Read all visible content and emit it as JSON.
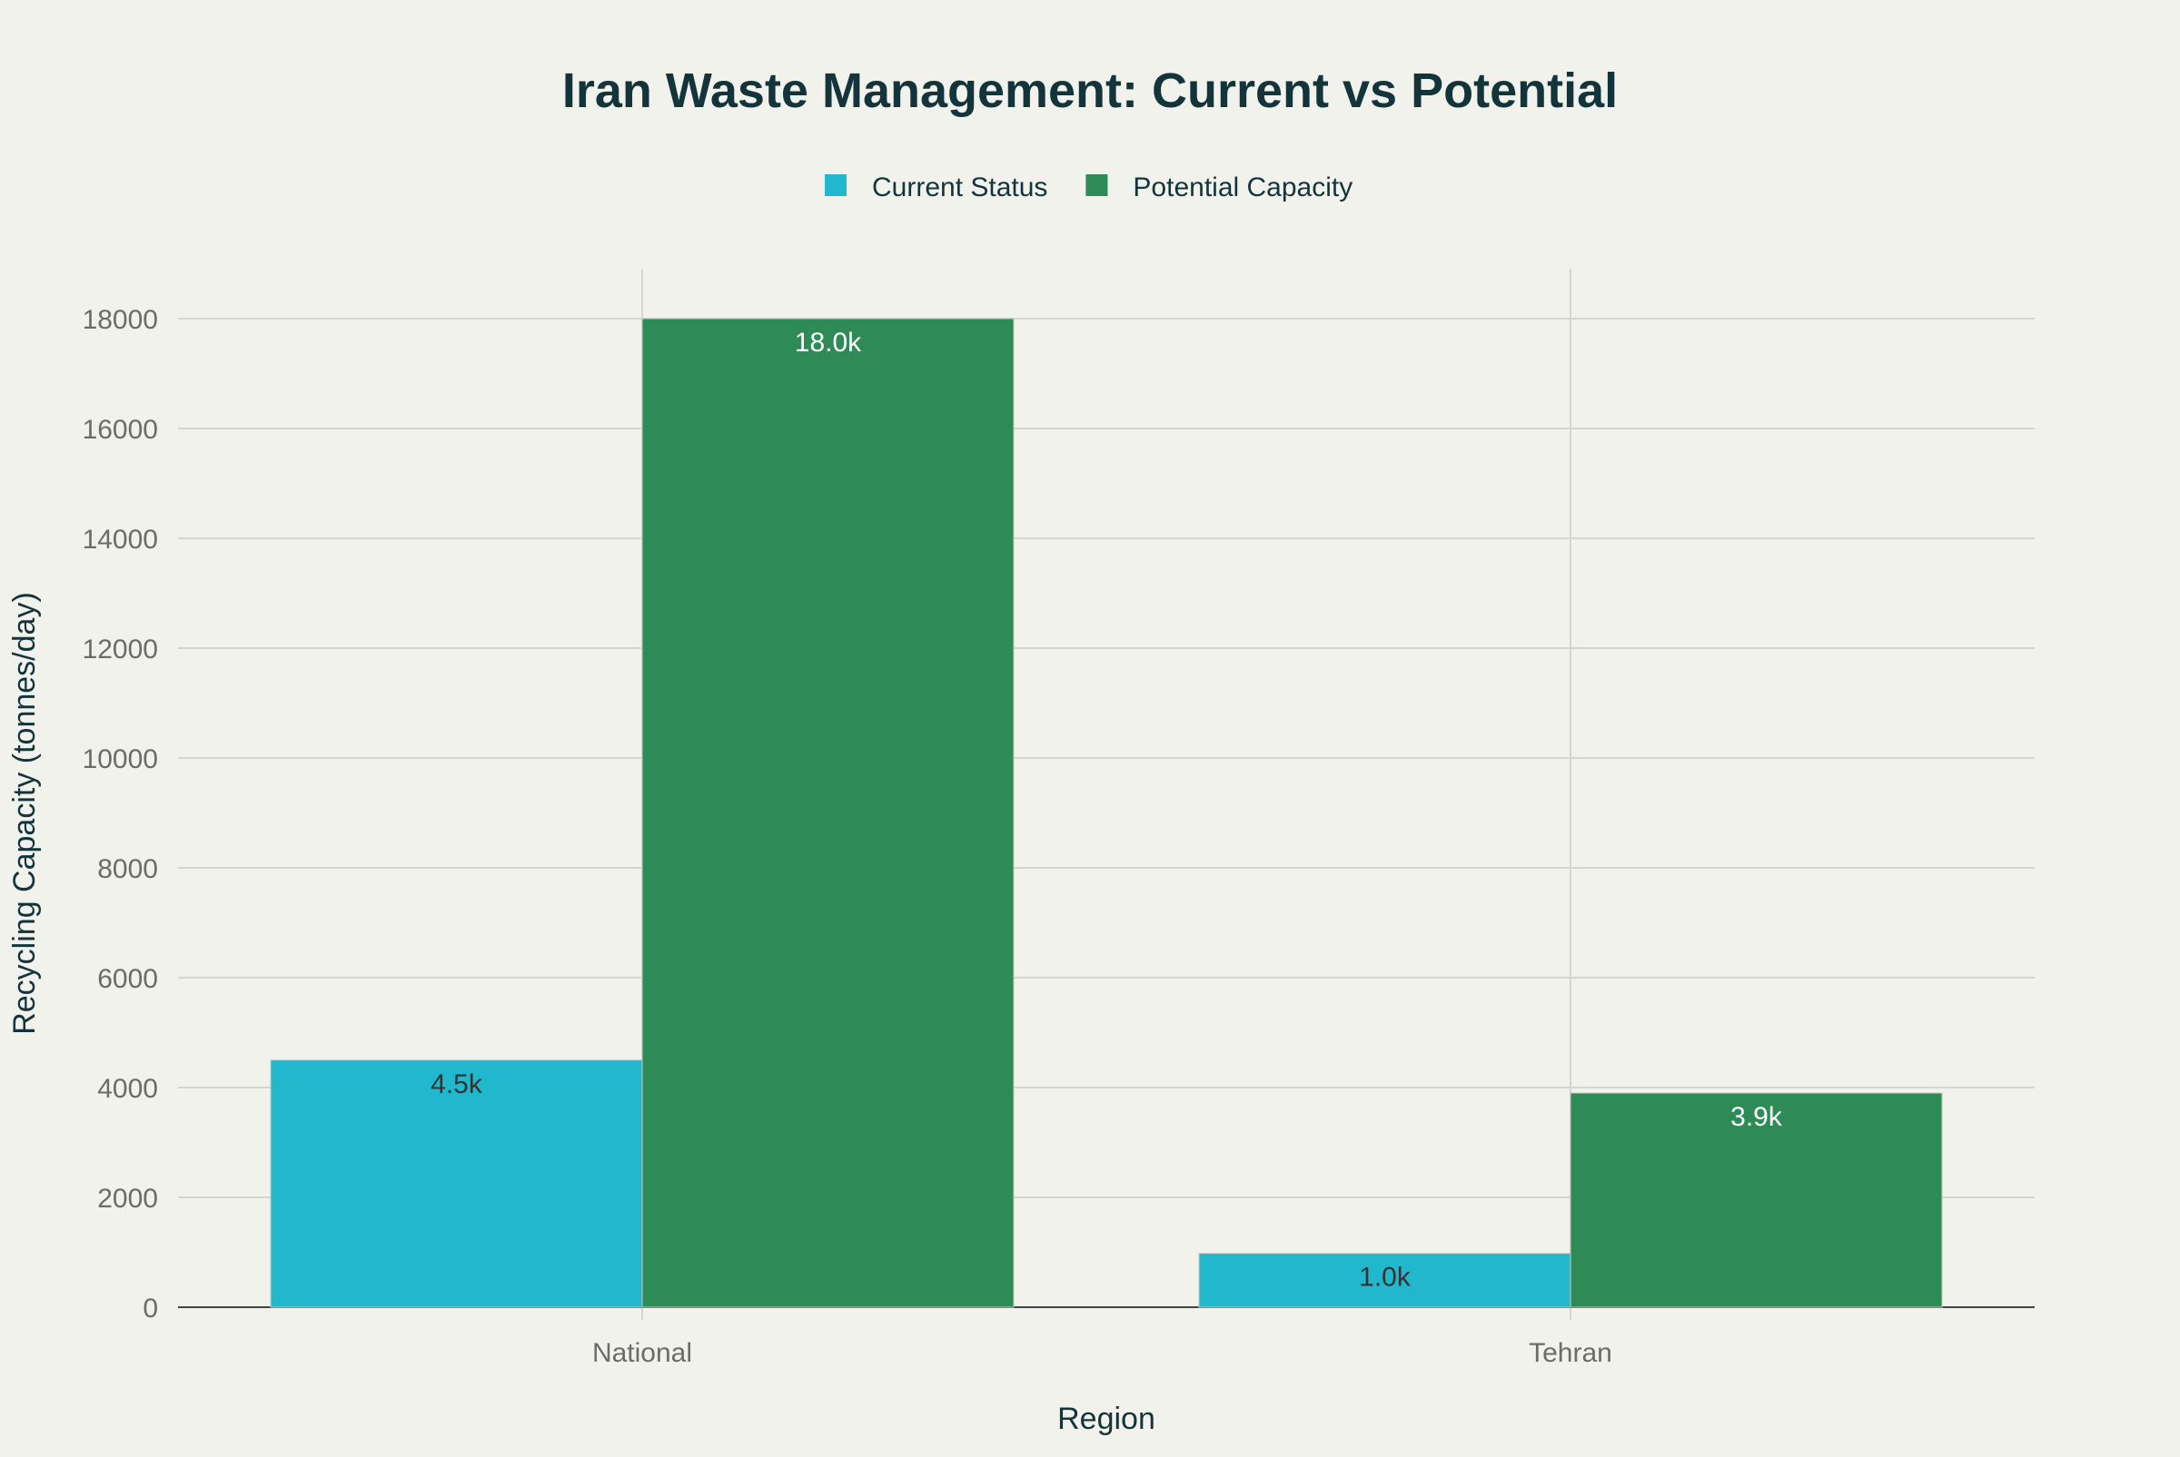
{
  "chart_data": {
    "type": "bar",
    "title": "Iran Waste Management: Current vs Potential",
    "xlabel": "Region",
    "ylabel": "Recycling Capacity (tonnes/day)",
    "categories": [
      "National",
      "Tehran"
    ],
    "series": [
      {
        "name": "Current Status",
        "values": [
          4500,
          980
        ],
        "labels": [
          "4.5k",
          "1.0k"
        ],
        "color": "#21b7cd",
        "label_color": "#333333"
      },
      {
        "name": "Potential Capacity",
        "values": [
          18000,
          3900
        ],
        "labels": [
          "18.0k",
          "3.9k"
        ],
        "color": "#2e8b57",
        "label_color": "#ffffff"
      }
    ],
    "ylim": [
      0,
      18900
    ],
    "yticks": [
      0,
      2000,
      4000,
      6000,
      8000,
      10000,
      12000,
      14000,
      16000,
      18000
    ],
    "grid": true,
    "legend": "top-center"
  }
}
